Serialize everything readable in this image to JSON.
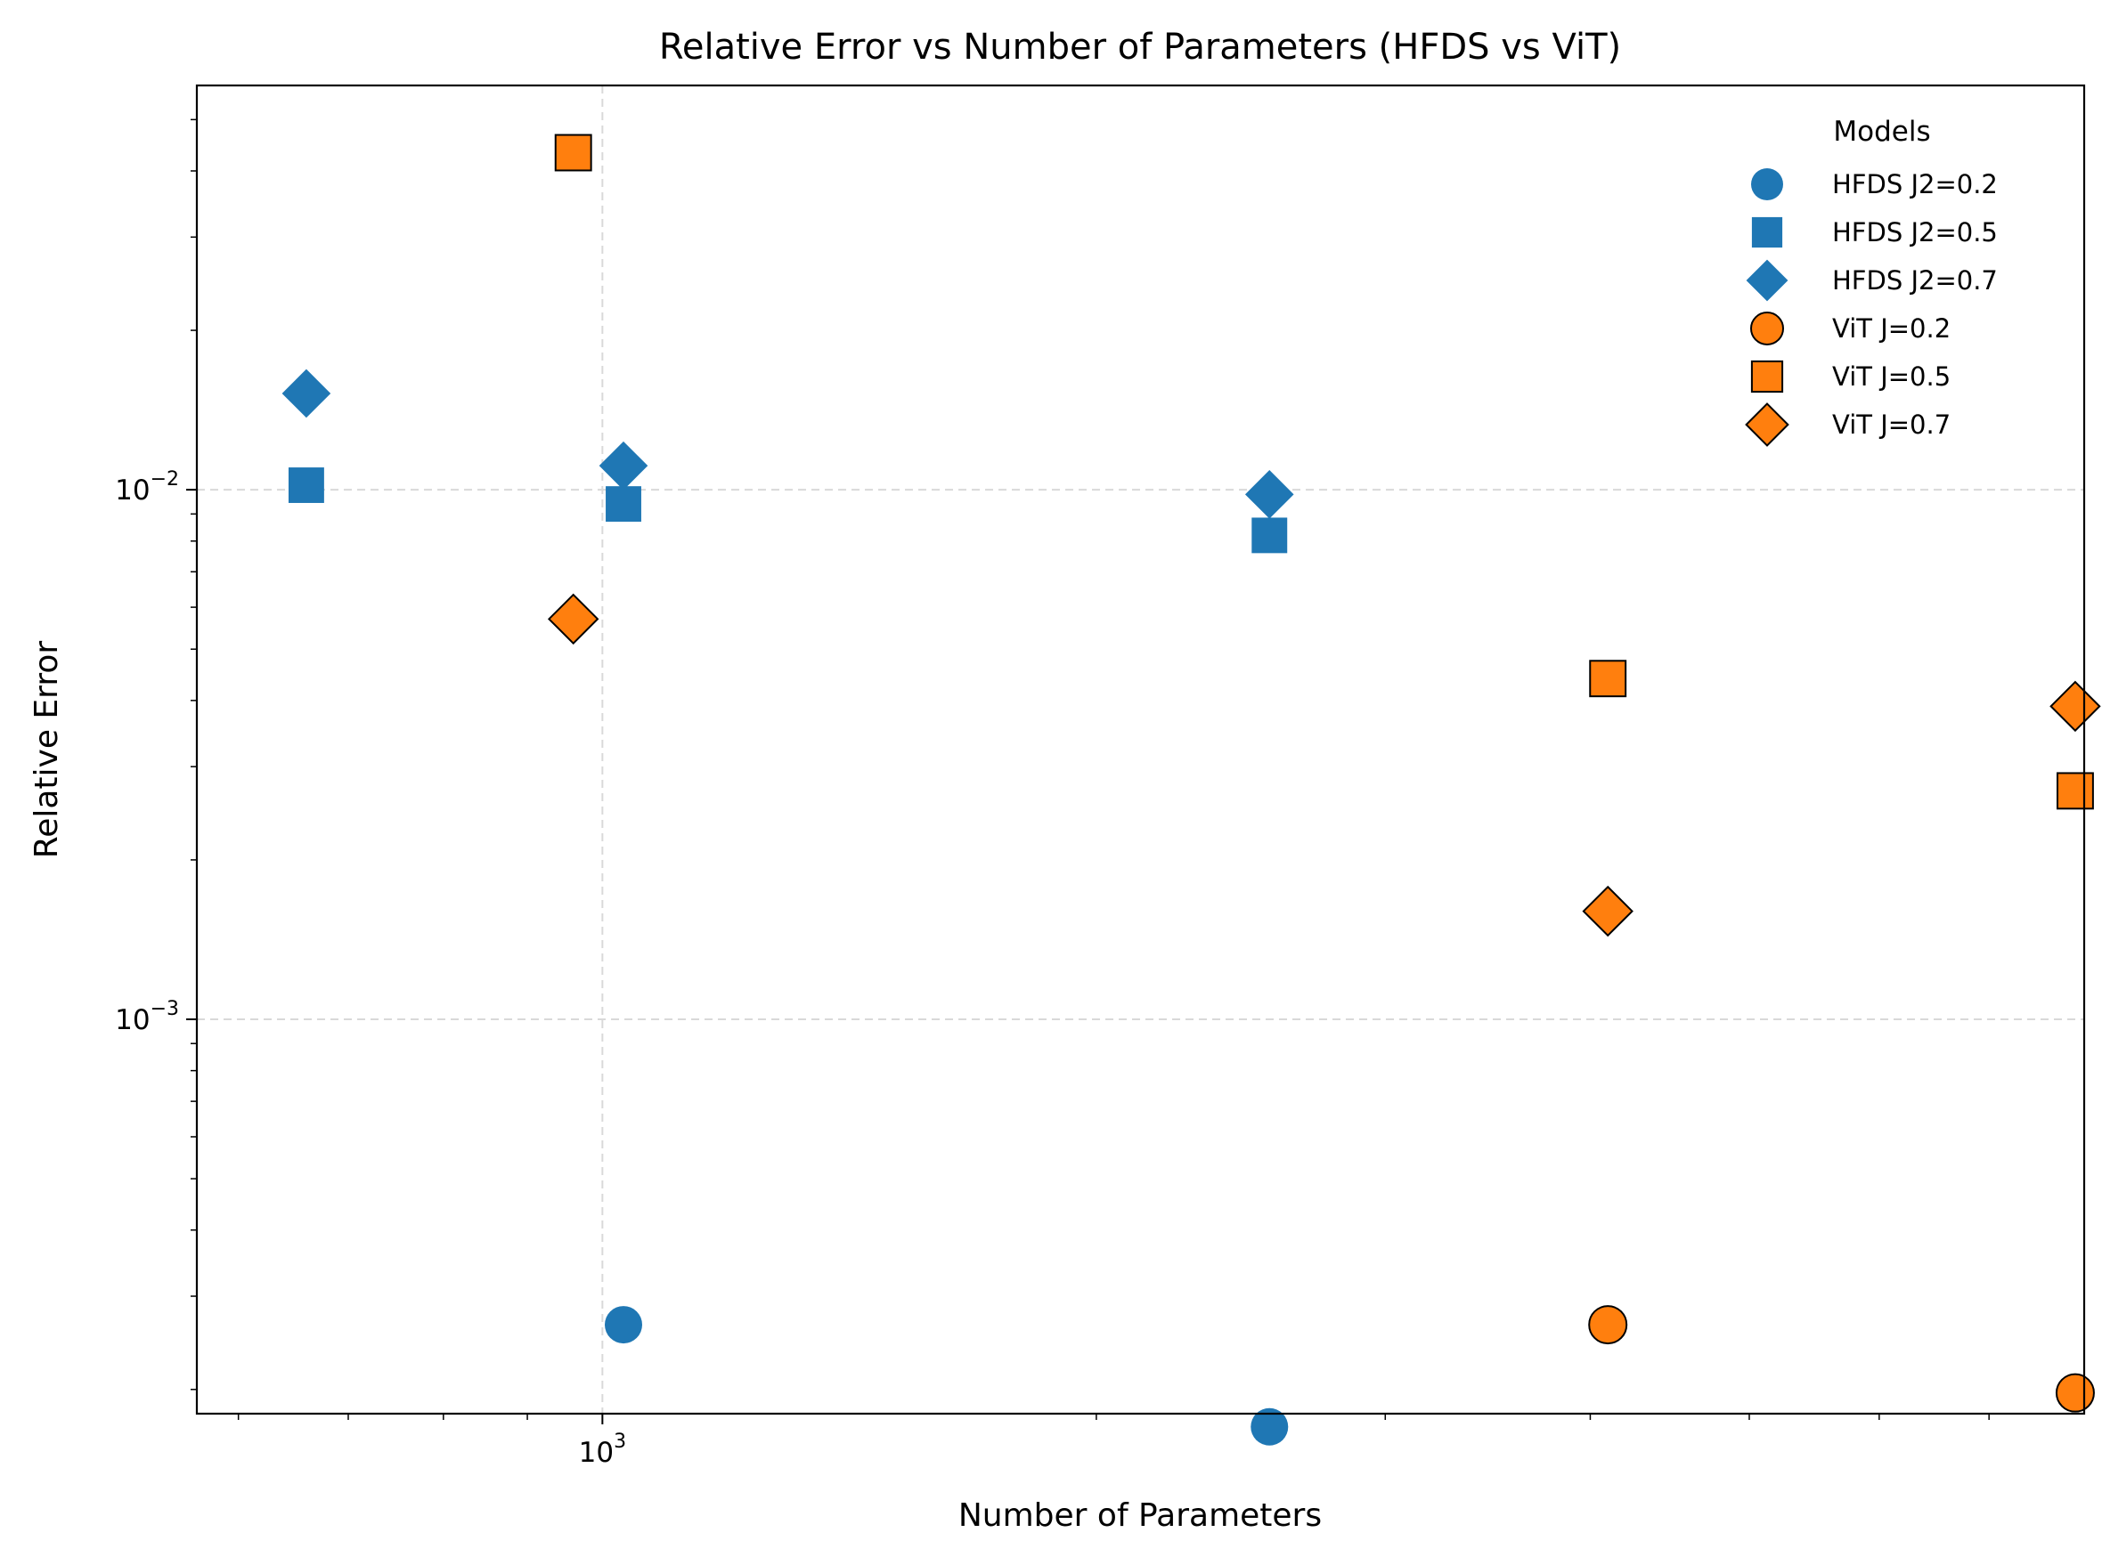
{
  "chart_data": {
    "type": "scatter",
    "title": "Relative Error vs Number of Parameters (HFDS vs ViT)",
    "xlabel": "Number of Parameters",
    "ylabel": "Relative Error",
    "xscale": "log",
    "yscale": "log",
    "xlim": [
      566,
      8000
    ],
    "ylim": [
      0.00018,
      0.058
    ],
    "grid": true,
    "x_tick_labels": [
      {
        "value": 1000,
        "base": "10",
        "exp": "3"
      }
    ],
    "y_tick_labels": [
      {
        "value": 0.001,
        "base": "10",
        "exp": "−3"
      },
      {
        "value": 0.01,
        "base": "10",
        "exp": "−2"
      }
    ],
    "legend": {
      "title": "Models",
      "placement": "upper right"
    },
    "series": [
      {
        "name": "HFDS J2=0.2",
        "marker": "circle",
        "color": "#1f77b4",
        "edge": "none",
        "points": [
          {
            "x": 1030,
            "y": 0.000265
          },
          {
            "x": 2550,
            "y": 0.00017
          }
        ]
      },
      {
        "name": "HFDS J2=0.5",
        "marker": "square",
        "color": "#1f77b4",
        "edge": "none",
        "points": [
          {
            "x": 660,
            "y": 0.0102
          },
          {
            "x": 1030,
            "y": 0.0094
          },
          {
            "x": 2550,
            "y": 0.0082
          }
        ]
      },
      {
        "name": "HFDS J2=0.7",
        "marker": "diamond",
        "color": "#1f77b4",
        "edge": "none",
        "points": [
          {
            "x": 660,
            "y": 0.0152
          },
          {
            "x": 1030,
            "y": 0.0111
          },
          {
            "x": 2550,
            "y": 0.0098
          }
        ]
      },
      {
        "name": "ViT J=0.2",
        "marker": "circle",
        "color": "#ff7f0e",
        "edge": "#000000",
        "points": [
          {
            "x": 4100,
            "y": 0.000265
          },
          {
            "x": 7900,
            "y": 0.000197
          }
        ]
      },
      {
        "name": "ViT J=0.5",
        "marker": "square",
        "color": "#ff7f0e",
        "edge": "#000000",
        "points": [
          {
            "x": 960,
            "y": 0.0433
          },
          {
            "x": 4100,
            "y": 0.0044
          },
          {
            "x": 7900,
            "y": 0.0027
          }
        ]
      },
      {
        "name": "ViT J=0.7",
        "marker": "diamond",
        "color": "#ff7f0e",
        "edge": "#000000",
        "points": [
          {
            "x": 960,
            "y": 0.0057
          },
          {
            "x": 4100,
            "y": 0.0016
          },
          {
            "x": 7900,
            "y": 0.0039
          }
        ]
      }
    ]
  }
}
